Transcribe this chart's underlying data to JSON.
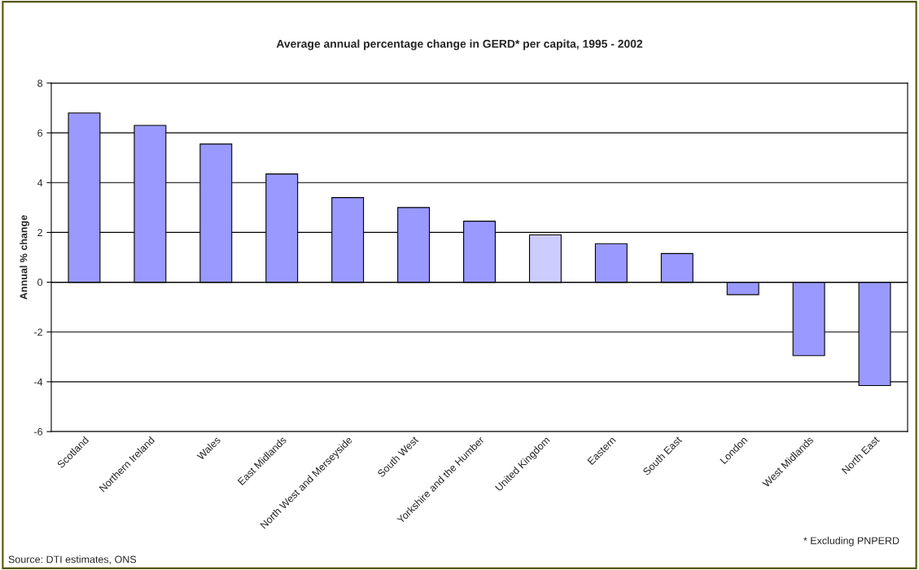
{
  "chart_data": {
    "type": "bar",
    "title": "Average annual percentage change in GERD* per capita, 1995 - 2002",
    "ylabel": "Annual % change",
    "categories": [
      "Scotland",
      "Northern Ireland",
      "Wales",
      "East Midlands",
      "North West and Merseyside",
      "South West",
      "Yorkshire and the Humber",
      "United Kingdom",
      "Eastern",
      "South East",
      "London",
      "West Midlands",
      "North East"
    ],
    "values": [
      6.8,
      6.3,
      5.55,
      4.35,
      3.4,
      3.0,
      2.45,
      1.9,
      1.55,
      1.15,
      -0.5,
      -2.95,
      -4.15
    ],
    "colors": [
      "#9999ff",
      "#9999ff",
      "#9999ff",
      "#9999ff",
      "#9999ff",
      "#9999ff",
      "#9999ff",
      "#ccccff",
      "#9999ff",
      "#9999ff",
      "#9999ff",
      "#9999ff",
      "#9999ff"
    ],
    "ylim": [
      -6,
      8
    ],
    "yticks": [
      -6,
      -4,
      -2,
      0,
      2,
      4,
      6,
      8
    ],
    "grid": "y",
    "annotations": [
      "Source: DTI estimates, ONS",
      "* Excluding PNPERD"
    ]
  }
}
